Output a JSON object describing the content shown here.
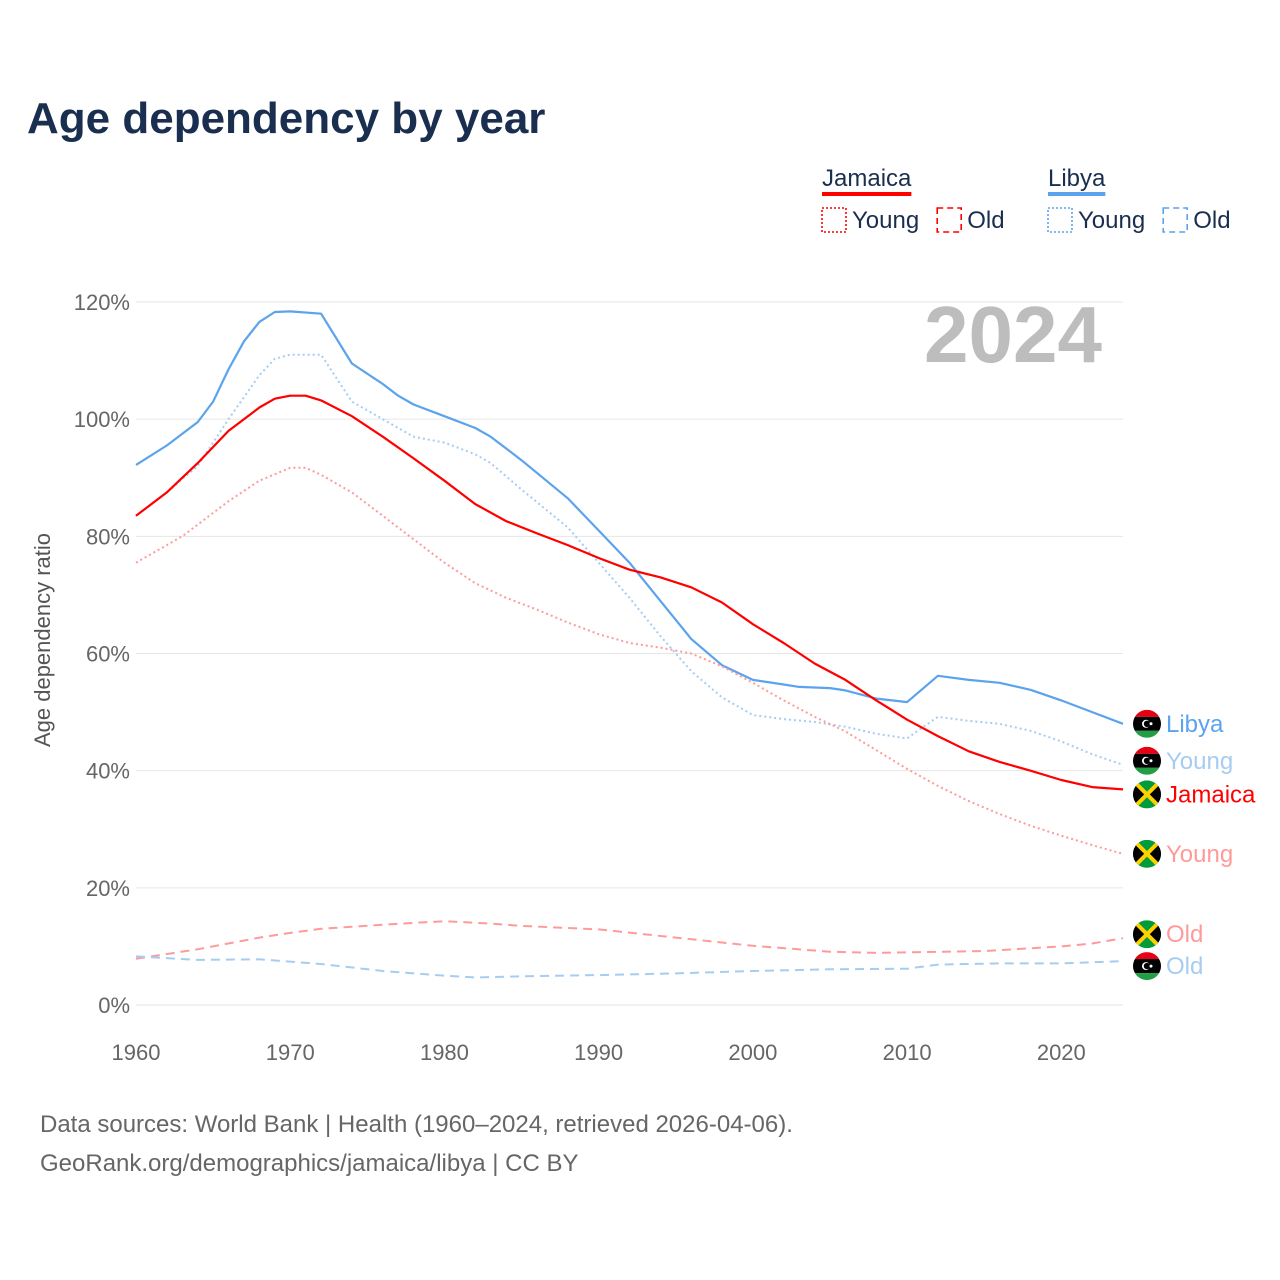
{
  "chart_data": {
    "type": "line",
    "title": "Age dependency by year",
    "ylabel": "Age dependency ratio",
    "xlabel": "",
    "xlim": [
      1960,
      2024
    ],
    "ylim": [
      0,
      120
    ],
    "x_ticks": [
      "1960",
      "1970",
      "1980",
      "1990",
      "2000",
      "2010",
      "2020"
    ],
    "y_ticks": [
      "0%",
      "20%",
      "40%",
      "60%",
      "80%",
      "100%",
      "120%"
    ],
    "grid": true,
    "year_watermark": "2024",
    "legend": {
      "placement": "top-right",
      "groups": [
        {
          "country": "Jamaica",
          "color": "#ff0000",
          "items": [
            "Young",
            "Old"
          ]
        },
        {
          "country": "Libya",
          "color": "#5ba3ec",
          "items": [
            "Young",
            "Old"
          ]
        }
      ]
    },
    "series": [
      {
        "name": "Libya",
        "label": "Libya",
        "country": "Libya",
        "style": "solid",
        "color": "#5ba3ec",
        "points": [
          [
            1960,
            92.2
          ],
          [
            1962,
            95.5
          ],
          [
            1964,
            99.5
          ],
          [
            1965,
            103
          ],
          [
            1966,
            108.5
          ],
          [
            1967,
            113.3
          ],
          [
            1968,
            116.6
          ],
          [
            1969,
            118.3
          ],
          [
            1970,
            118.4
          ],
          [
            1972,
            118
          ],
          [
            1974,
            109.5
          ],
          [
            1976,
            106
          ],
          [
            1977,
            104
          ],
          [
            1978,
            102.5
          ],
          [
            1980,
            100.5
          ],
          [
            1982,
            98.5
          ],
          [
            1983,
            97
          ],
          [
            1985,
            93
          ],
          [
            1988,
            86.5
          ],
          [
            1990,
            81
          ],
          [
            1992,
            75.5
          ],
          [
            1994,
            69
          ],
          [
            1996,
            62.5
          ],
          [
            1998,
            58
          ],
          [
            2000,
            55.5
          ],
          [
            2002,
            54.7
          ],
          [
            2003,
            54.3
          ],
          [
            2005,
            54.1
          ],
          [
            2006,
            53.7
          ],
          [
            2008,
            52.3
          ],
          [
            2010,
            51.7
          ],
          [
            2012,
            56.2
          ],
          [
            2014,
            55.5
          ],
          [
            2016,
            55
          ],
          [
            2018,
            53.8
          ],
          [
            2020,
            52
          ],
          [
            2022,
            50
          ],
          [
            2024,
            48
          ]
        ]
      },
      {
        "name": "Libya Young",
        "label": "Young",
        "country": "Libya",
        "style": "dotted",
        "color": "#a6ccf2",
        "points": [
          [
            1960,
            83.5
          ],
          [
            1962,
            87.5
          ],
          [
            1964,
            92
          ],
          [
            1966,
            100
          ],
          [
            1968,
            107.5
          ],
          [
            1969,
            110.3
          ],
          [
            1970,
            111
          ],
          [
            1972,
            111
          ],
          [
            1974,
            103
          ],
          [
            1977,
            98.5
          ],
          [
            1978,
            97
          ],
          [
            1980,
            96
          ],
          [
            1982,
            94
          ],
          [
            1983,
            92.5
          ],
          [
            1985,
            88
          ],
          [
            1988,
            81.5
          ],
          [
            1990,
            75.5
          ],
          [
            1992,
            69.5
          ],
          [
            1994,
            63
          ],
          [
            1996,
            57
          ],
          [
            1998,
            52.5
          ],
          [
            2000,
            49.5
          ],
          [
            2002,
            48.8
          ],
          [
            2004,
            48.3
          ],
          [
            2006,
            47.5
          ],
          [
            2008,
            46.3
          ],
          [
            2010,
            45.5
          ],
          [
            2012,
            49.2
          ],
          [
            2014,
            48.5
          ],
          [
            2016,
            48
          ],
          [
            2018,
            46.8
          ],
          [
            2020,
            45
          ],
          [
            2022,
            42.8
          ],
          [
            2024,
            41
          ]
        ]
      },
      {
        "name": "Jamaica",
        "label": "Jamaica",
        "country": "Jamaica",
        "style": "solid",
        "color": "#ff0000",
        "points": [
          [
            1960,
            83.5
          ],
          [
            1962,
            87.5
          ],
          [
            1964,
            92.5
          ],
          [
            1966,
            98
          ],
          [
            1968,
            102
          ],
          [
            1969,
            103.5
          ],
          [
            1970,
            104
          ],
          [
            1971,
            104
          ],
          [
            1972,
            103.2
          ],
          [
            1974,
            100.5
          ],
          [
            1976,
            97
          ],
          [
            1978,
            93.3
          ],
          [
            1980,
            89.5
          ],
          [
            1982,
            85.5
          ],
          [
            1984,
            82.6
          ],
          [
            1986,
            80.5
          ],
          [
            1988,
            78.5
          ],
          [
            1990,
            76.3
          ],
          [
            1992,
            74.3
          ],
          [
            1994,
            73
          ],
          [
            1996,
            71.3
          ],
          [
            1998,
            68.7
          ],
          [
            2000,
            65
          ],
          [
            2002,
            61.8
          ],
          [
            2004,
            58.3
          ],
          [
            2006,
            55.5
          ],
          [
            2008,
            52
          ],
          [
            2010,
            48.7
          ],
          [
            2012,
            45.9
          ],
          [
            2014,
            43.3
          ],
          [
            2016,
            41.5
          ],
          [
            2018,
            40
          ],
          [
            2020,
            38.4
          ],
          [
            2022,
            37.2
          ],
          [
            2024,
            36.8
          ]
        ]
      },
      {
        "name": "Jamaica Young",
        "label": "Young",
        "country": "Jamaica",
        "style": "dotted",
        "color": "#ff9a9a",
        "points": [
          [
            1960,
            75.5
          ],
          [
            1963,
            80
          ],
          [
            1966,
            86
          ],
          [
            1968,
            89.5
          ],
          [
            1970,
            91.7
          ],
          [
            1971,
            91.7
          ],
          [
            1972,
            90.5
          ],
          [
            1974,
            87.5
          ],
          [
            1976,
            83.5
          ],
          [
            1978,
            79.5
          ],
          [
            1980,
            75.5
          ],
          [
            1982,
            72
          ],
          [
            1984,
            69.5
          ],
          [
            1986,
            67.5
          ],
          [
            1988,
            65.3
          ],
          [
            1990,
            63.3
          ],
          [
            1992,
            61.8
          ],
          [
            1994,
            61
          ],
          [
            1996,
            60
          ],
          [
            1998,
            57.8
          ],
          [
            2000,
            55
          ],
          [
            2002,
            52
          ],
          [
            2004,
            49.2
          ],
          [
            2006,
            46.7
          ],
          [
            2008,
            43.5
          ],
          [
            2010,
            40.3
          ],
          [
            2012,
            37.4
          ],
          [
            2014,
            34.8
          ],
          [
            2016,
            32.6
          ],
          [
            2018,
            30.6
          ],
          [
            2020,
            28.9
          ],
          [
            2022,
            27.3
          ],
          [
            2024,
            25.8
          ]
        ]
      },
      {
        "name": "Jamaica Old",
        "label": "Old",
        "country": "Jamaica",
        "style": "dashed",
        "color": "#ff9a9a",
        "points": [
          [
            1960,
            7.9
          ],
          [
            1964,
            9.5
          ],
          [
            1968,
            11.5
          ],
          [
            1970,
            12.3
          ],
          [
            1972,
            13
          ],
          [
            1976,
            13.7
          ],
          [
            1980,
            14.3
          ],
          [
            1983,
            13.9
          ],
          [
            1985,
            13.5
          ],
          [
            1990,
            12.9
          ],
          [
            1995,
            11.5
          ],
          [
            2000,
            10.1
          ],
          [
            2005,
            9.1
          ],
          [
            2008,
            8.9
          ],
          [
            2010,
            9
          ],
          [
            2015,
            9.2
          ],
          [
            2020,
            10
          ],
          [
            2022,
            10.5
          ],
          [
            2024,
            11.4
          ]
        ]
      },
      {
        "name": "Libya Old",
        "label": "Old",
        "country": "Libya",
        "style": "dashed",
        "color": "#a6ccf2",
        "points": [
          [
            1960,
            8.3
          ],
          [
            1964,
            7.7
          ],
          [
            1968,
            7.8
          ],
          [
            1972,
            7
          ],
          [
            1976,
            5.8
          ],
          [
            1980,
            5
          ],
          [
            1982,
            4.7
          ],
          [
            1985,
            4.9
          ],
          [
            1990,
            5.1
          ],
          [
            1995,
            5.4
          ],
          [
            2000,
            5.8
          ],
          [
            2005,
            6.1
          ],
          [
            2010,
            6.2
          ],
          [
            2012,
            6.9
          ],
          [
            2016,
            7.1
          ],
          [
            2020,
            7.1
          ],
          [
            2024,
            7.5
          ]
        ]
      }
    ],
    "source_lines": [
      "Data sources: World Bank | Health (1960–2024, retrieved 2026-04-06).",
      "GeoRank.org/demographics/jamaica/libya | CC BY"
    ]
  }
}
